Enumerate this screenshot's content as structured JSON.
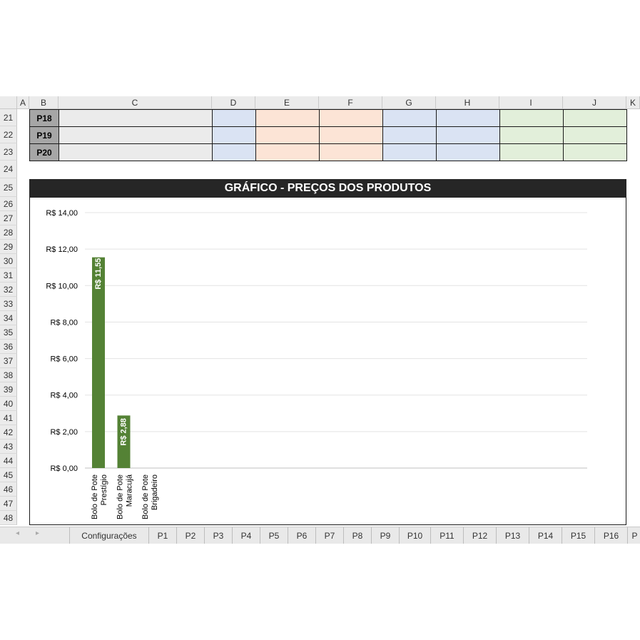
{
  "columns": [
    "A",
    "B",
    "C",
    "D",
    "E",
    "F",
    "G",
    "H",
    "I",
    "J",
    "K"
  ],
  "rows": [
    "21",
    "22",
    "23",
    "24",
    "25",
    "26",
    "27",
    "28",
    "29",
    "30",
    "31",
    "32",
    "33",
    "34",
    "35",
    "36",
    "37",
    "38",
    "39",
    "40",
    "41",
    "42",
    "43",
    "44",
    "45",
    "46",
    "47",
    "48"
  ],
  "product_rows": [
    "P18",
    "P19",
    "P20"
  ],
  "colors": {
    "blue_fill": "#dae3f3",
    "orange_fill": "#fce4d6",
    "green_fill": "#e2efda",
    "bar": "#548235",
    "title_bg": "#262626"
  },
  "chart_data": {
    "type": "bar",
    "title": "GRÁFICO - PREÇOS DOS PRODUTOS",
    "categories": [
      "Bolo de Pote Prestígio",
      "Bolo de Pote Maracujá",
      "Bolo de Pote Brigadeiro"
    ],
    "category_lines": [
      [
        "Bolo de Pote",
        "Prestígio"
      ],
      [
        "Bolo de Pote",
        "Maracujá"
      ],
      [
        "Bolo de Pote",
        "Brigadeiro"
      ]
    ],
    "values": [
      11.55,
      2.88,
      0
    ],
    "data_labels": [
      "R$ 11,55",
      "R$ 2,88",
      ""
    ],
    "ylim": [
      0,
      14
    ],
    "yticks": [
      "R$ 0,00",
      "R$ 2,00",
      "R$ 4,00",
      "R$ 6,00",
      "R$ 8,00",
      "R$ 10,00",
      "R$ 12,00",
      "R$ 14,00"
    ],
    "grid": true,
    "xlabel": "",
    "ylabel": ""
  },
  "tabs": [
    "Configurações",
    "P1",
    "P2",
    "P3",
    "P4",
    "P5",
    "P6",
    "P7",
    "P8",
    "P9",
    "P10",
    "P11",
    "P12",
    "P13",
    "P14",
    "P15",
    "P16",
    "P"
  ]
}
